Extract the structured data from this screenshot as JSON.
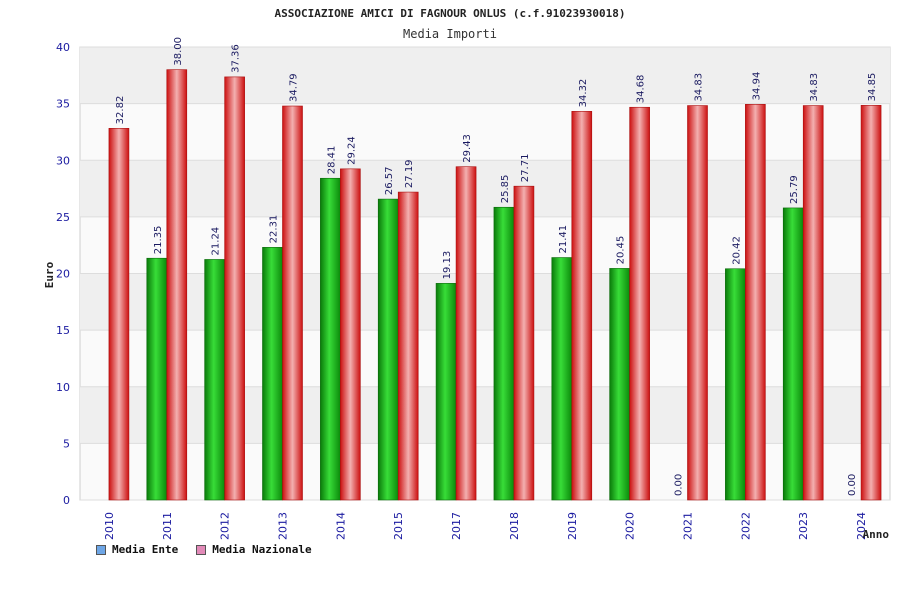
{
  "chart_data": {
    "type": "bar",
    "title": "ASSOCIAZIONE AMICI DI FAGNOUR ONLUS (c.f.91023930018)",
    "subtitle": "Media Importi",
    "ylabel": "Euro",
    "xlabel": "Anno",
    "ylim": [
      0,
      40
    ],
    "yticks": [
      0,
      5,
      10,
      15,
      20,
      25,
      30,
      35,
      40
    ],
    "categories": [
      "2010",
      "2011",
      "2012",
      "2013",
      "2014",
      "2015",
      "2017",
      "2018",
      "2019",
      "2020",
      "2021",
      "2022",
      "2023",
      "2024"
    ],
    "series": [
      {
        "name": "Media Ente",
        "color": "#22aa22",
        "legend_color": "#6ea6e6",
        "values": [
          null,
          21.35,
          21.24,
          22.31,
          28.41,
          26.57,
          19.13,
          25.85,
          21.41,
          20.45,
          0.0,
          20.42,
          25.79,
          0.0
        ],
        "labels": [
          "",
          "21.35",
          "21.24",
          "22.31",
          "28.41",
          "26.57",
          "19.13",
          "25.85",
          "21.41",
          "20.45",
          "0.00",
          "20.42",
          "25.79",
          "0.00"
        ]
      },
      {
        "name": "Media Nazionale",
        "color": "#dd2222",
        "legend_color": "#e28ab8",
        "values": [
          32.82,
          38.0,
          37.36,
          34.79,
          29.24,
          27.19,
          29.43,
          27.71,
          34.32,
          34.68,
          34.83,
          34.94,
          34.83,
          34.85
        ],
        "labels": [
          "32.82",
          "38.00",
          "37.36",
          "34.79",
          "29.24",
          "27.19",
          "29.43",
          "27.71",
          "34.32",
          "34.68",
          "34.83",
          "34.94",
          "34.83",
          "34.85"
        ]
      }
    ],
    "grid": true,
    "legend_position": "bottom-left"
  }
}
